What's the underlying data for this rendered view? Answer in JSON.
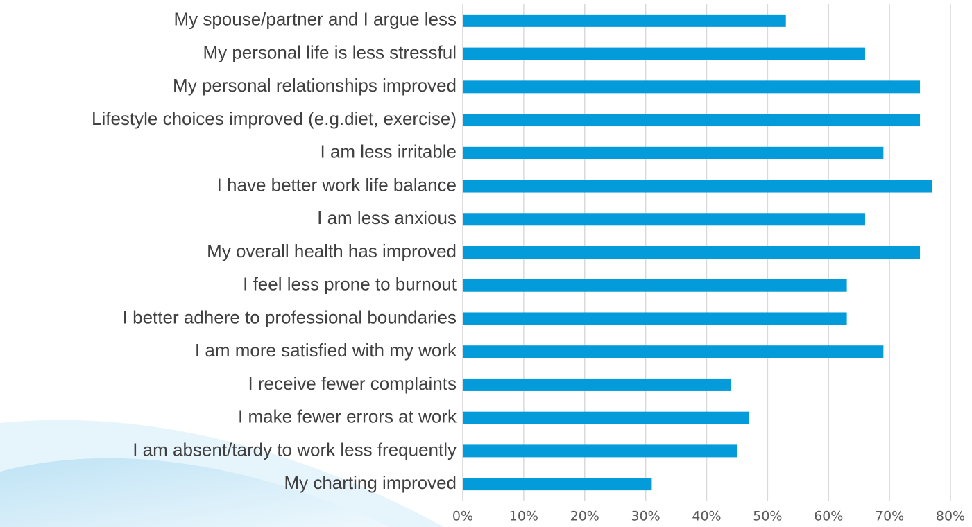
{
  "chart_data": {
    "type": "hbar",
    "categories": [
      "My spouse/partner and I argue less",
      "My personal life is less stressful",
      "My personal relationships improved",
      "Lifestyle choices improved (e.g.diet, exercise)",
      "I am less irritable",
      "I have better work life balance",
      "I am less anxious",
      "My overall health has improved",
      "I feel less prone to burnout",
      "I better adhere to professional boundaries",
      "I am more satisfied with my work",
      "I receive fewer complaints",
      "I make fewer errors at work",
      "I am absent/tardy to work less frequently",
      "My charting improved"
    ],
    "values": [
      53,
      66,
      75,
      75,
      69,
      77,
      66,
      75,
      63,
      63,
      69,
      44,
      47,
      45,
      31
    ],
    "color": "#039bd9",
    "xlim": [
      0,
      80
    ],
    "xticks": [
      {
        "value": 0,
        "label": "0%"
      },
      {
        "value": 10,
        "label": "10%"
      },
      {
        "value": 20,
        "label": "20%"
      },
      {
        "value": 30,
        "label": "30%"
      },
      {
        "value": 40,
        "label": "40%"
      },
      {
        "value": 50,
        "label": "50%"
      },
      {
        "value": 60,
        "label": "60%"
      },
      {
        "value": 70,
        "label": "70%"
      },
      {
        "value": 80,
        "label": "80%"
      }
    ],
    "grid": true
  }
}
